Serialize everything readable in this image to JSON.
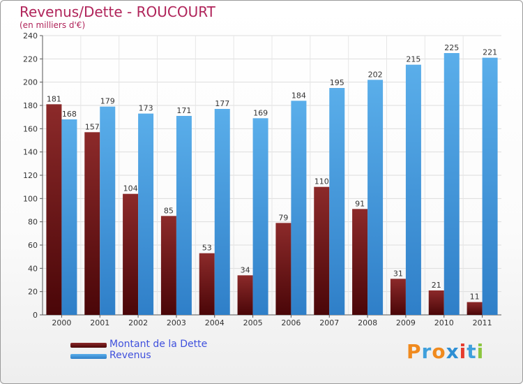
{
  "header": {
    "title": "Revenus/Dette - ROUCOURT",
    "subtitle": "(en milliers d'€)"
  },
  "legend": {
    "items": [
      {
        "label": "Montant de la Dette",
        "color": "#7a1a1c"
      },
      {
        "label": "Revenus",
        "color": "#4ba0e4"
      }
    ]
  },
  "logo": {
    "text": "Proxiti",
    "colors": [
      "#f08a1e",
      "#3fa0dc",
      "#f08a1e",
      "#2e8fd4",
      "#e63c2e",
      "#3fa0dc",
      "#8cc63f"
    ]
  },
  "chart_data": {
    "type": "bar",
    "title": "Revenus/Dette - ROUCOURT",
    "subtitle": "(en milliers d'€)",
    "xlabel": "",
    "ylabel": "",
    "ylim": [
      0,
      240
    ],
    "yticks": [
      0,
      20,
      40,
      60,
      80,
      100,
      120,
      140,
      160,
      180,
      200,
      220,
      240
    ],
    "grid": true,
    "legend_position": "bottom-left",
    "categories": [
      "2000",
      "2001",
      "2002",
      "2003",
      "2004",
      "2005",
      "2006",
      "2007",
      "2008",
      "2009",
      "2010",
      "2011"
    ],
    "series": [
      {
        "name": "Montant de la Dette",
        "color": "#7a1a1c",
        "values": [
          181,
          157,
          104,
          85,
          53,
          34,
          79,
          110,
          91,
          31,
          21,
          11
        ]
      },
      {
        "name": "Revenus",
        "color": "#4ba0e4",
        "values": [
          168,
          179,
          173,
          171,
          177,
          169,
          184,
          195,
          202,
          215,
          225,
          221
        ]
      }
    ]
  }
}
